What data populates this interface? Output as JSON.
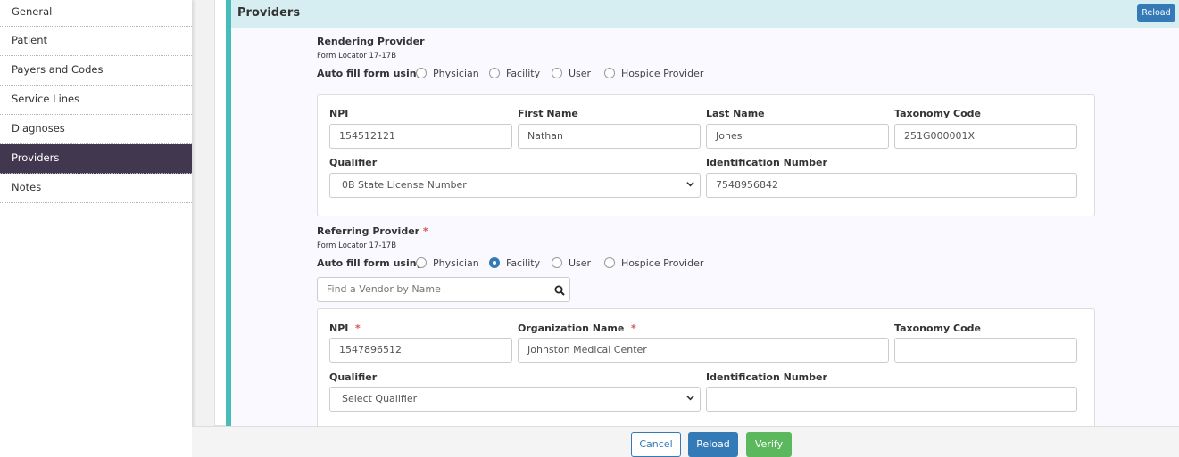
{
  "sidebar": {
    "items": [
      {
        "label": "General"
      },
      {
        "label": "Patient"
      },
      {
        "label": "Payers and Codes"
      },
      {
        "label": "Service Lines"
      },
      {
        "label": "Diagnoses"
      },
      {
        "label": "Providers",
        "active": true
      },
      {
        "label": "Notes"
      }
    ]
  },
  "panel": {
    "title": "Providers",
    "reload_label": "Reload"
  },
  "rendering": {
    "title": "Rendering Provider",
    "locator": "Form Locator 17-17B",
    "autofill_label": "Auto fill form using",
    "options": [
      "Physician",
      "Facility",
      "User",
      "Hospice Provider"
    ],
    "selected": null,
    "npi_label": "NPI",
    "npi": "154512121",
    "first_label": "First Name",
    "first": "Nathan",
    "last_label": "Last Name",
    "last": "Jones",
    "taxonomy_label": "Taxonomy Code",
    "taxonomy": "251G000001X",
    "qualifier_label": "Qualifier",
    "qualifier": "0B State License Number",
    "idnum_label": "Identification Number",
    "idnum": "7548956842"
  },
  "referring": {
    "title": "Referring Provider",
    "required": "*",
    "locator": "Form Locator 17-17B",
    "autofill_label": "Auto fill form using",
    "options": [
      "Physician",
      "Facility",
      "User",
      "Hospice Provider"
    ],
    "selected": "Facility",
    "vendor_placeholder": "Find a Vendor by Name",
    "npi_label": "NPI",
    "npi": "1547896512",
    "org_label": "Organization Name",
    "org": "Johnston Medical Center",
    "taxonomy_label": "Taxonomy Code",
    "taxonomy": "",
    "qualifier_label": "Qualifier",
    "qualifier": "Select Qualifier",
    "idnum_label": "Identification Number",
    "idnum": ""
  },
  "footer": {
    "cancel": "Cancel",
    "reload": "Reload",
    "verify": "Verify"
  },
  "colors": {
    "primary": "#337ab7",
    "success": "#5cb85c",
    "accent": "#46bdb7",
    "nav_active": "#41374f"
  }
}
